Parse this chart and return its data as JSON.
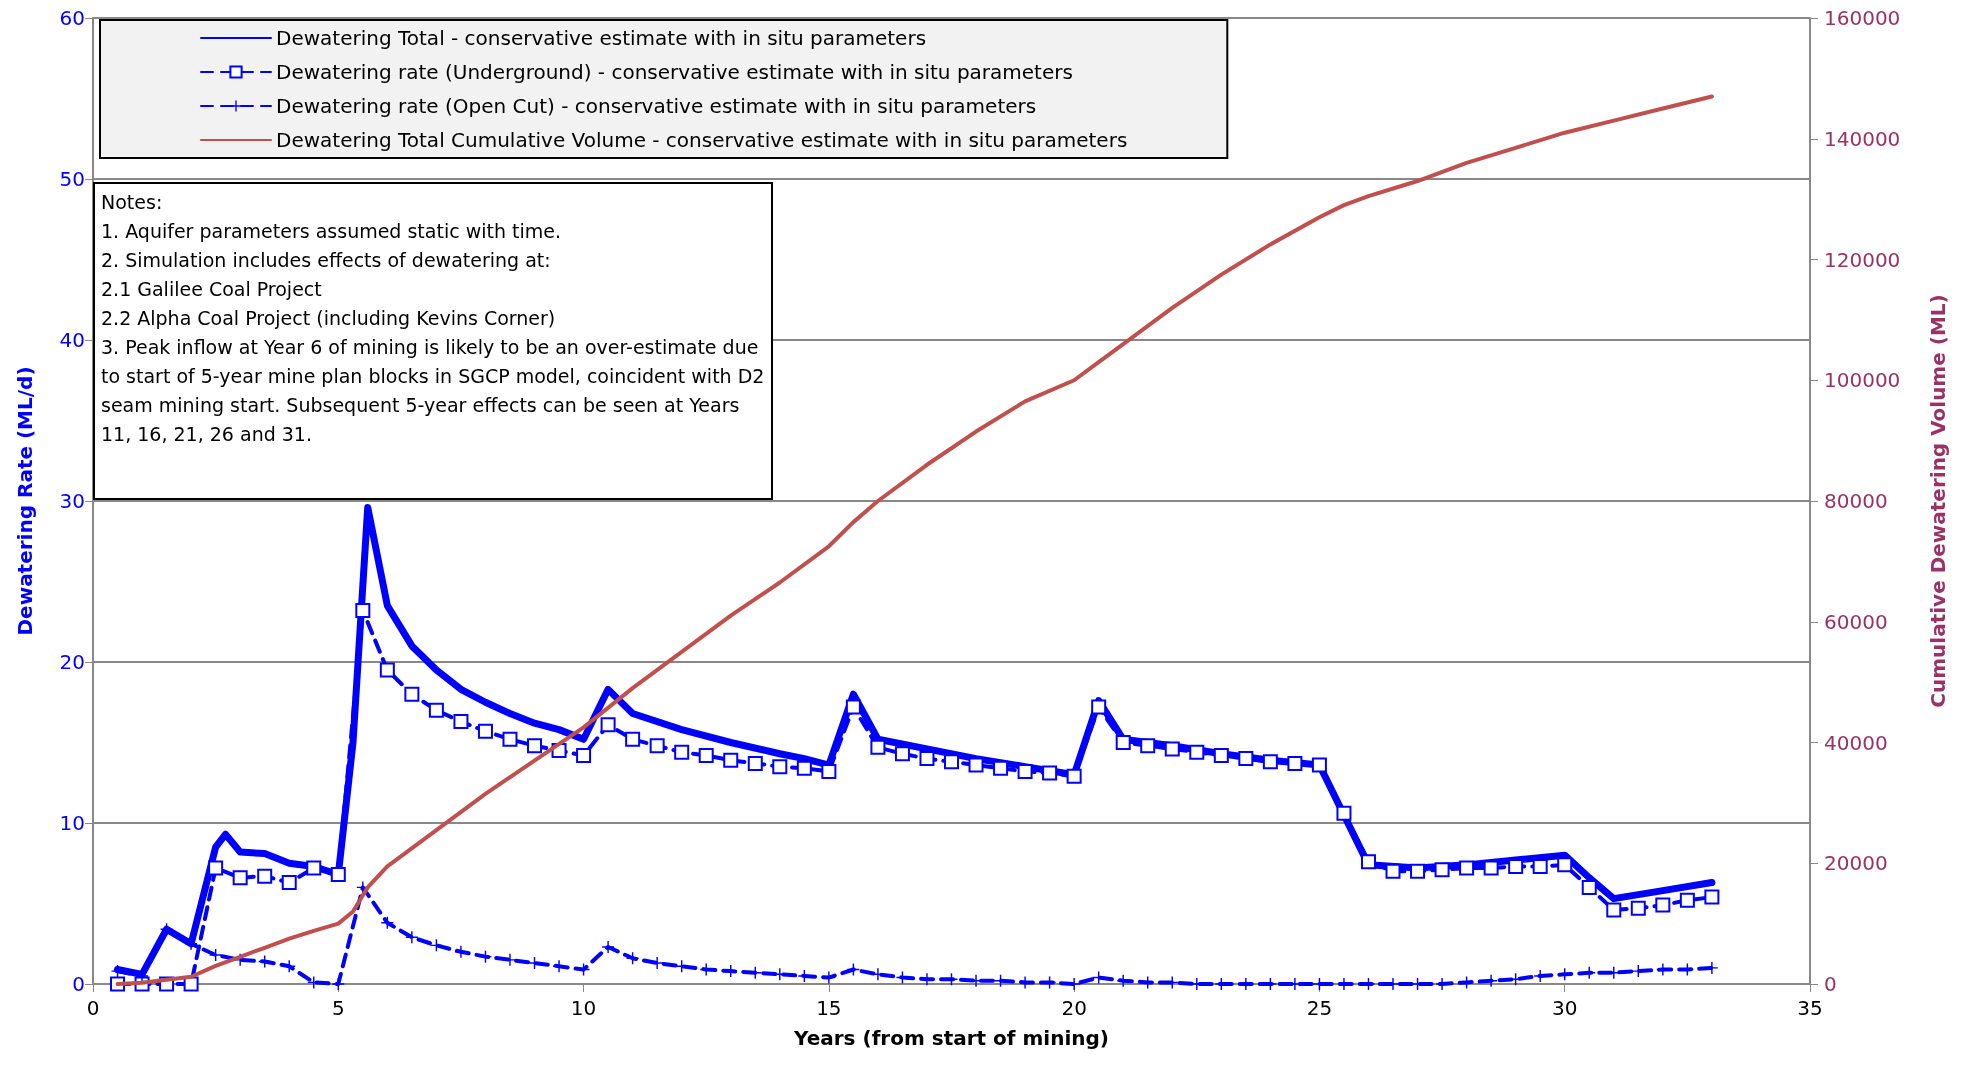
{
  "chart_data": {
    "type": "line",
    "xlabel": "Years (from start of mining)",
    "ylabel": "Dewatering Rate (ML/d)",
    "y2label": "Cumulative Dewatering Volume (ML)",
    "xlim": [
      0,
      35
    ],
    "xticks": [
      0,
      5,
      10,
      15,
      20,
      25,
      30,
      35
    ],
    "ylim": [
      0,
      60
    ],
    "yticks": [
      0,
      10,
      20,
      30,
      40,
      50,
      60
    ],
    "y2lim": [
      0,
      160000
    ],
    "y2ticks": [
      0,
      20000,
      40000,
      60000,
      80000,
      100000,
      120000,
      140000,
      160000
    ],
    "grid": "y",
    "legend": "top left",
    "series": [
      {
        "name": "Dewatering Total - conservative estimate with in situ parameters",
        "color": "#0000ff",
        "line_style": "solid",
        "marker": "none",
        "x": [
          0.5,
          1,
          1.5,
          2,
          2.5,
          2.7,
          3,
          3.5,
          4,
          4.5,
          5,
          5.3,
          5.6,
          6,
          6.5,
          7,
          7.5,
          8,
          8.5,
          9,
          9.5,
          10,
          10.5,
          11,
          12,
          13,
          14,
          14.5,
          15,
          15.5,
          16,
          17,
          18,
          19,
          20,
          20.5,
          21,
          22,
          23,
          24,
          25,
          25.5,
          26,
          27,
          28,
          29,
          30,
          30.5,
          31,
          32,
          33
        ],
        "values": [
          0.9,
          0.6,
          3.4,
          2.5,
          8.5,
          9.3,
          8.2,
          8.1,
          7.5,
          7.3,
          6.8,
          15,
          29.6,
          23.5,
          21,
          19.5,
          18.3,
          17.5,
          16.8,
          16.2,
          15.8,
          15.2,
          18.3,
          16.8,
          15.8,
          15,
          14.3,
          14,
          13.6,
          18,
          15.2,
          14.6,
          14,
          13.5,
          13,
          17.6,
          15.2,
          14.8,
          14.3,
          13.9,
          13.6,
          10.5,
          7.4,
          7.2,
          7.4,
          7.7,
          8,
          6.6,
          5.3,
          5.8,
          6.3
        ]
      },
      {
        "name": "Dewatering rate (Underground) - conservative estimate with in situ parameters",
        "color": "#0000ff",
        "line_style": "dashed",
        "marker": "square",
        "x": [
          0.5,
          1,
          1.5,
          2,
          2.5,
          3,
          3.5,
          4,
          4.5,
          5,
          5.5,
          6,
          6.5,
          7,
          7.5,
          8,
          8.5,
          9,
          9.5,
          10,
          10.5,
          11,
          11.5,
          12,
          12.5,
          13,
          13.5,
          14,
          14.5,
          15,
          15.5,
          16,
          16.5,
          17,
          17.5,
          18,
          18.5,
          19,
          19.5,
          20,
          20.5,
          21,
          21.5,
          22,
          22.5,
          23,
          23.5,
          24,
          24.5,
          25,
          25.5,
          26,
          26.5,
          27,
          27.5,
          28,
          28.5,
          29,
          29.5,
          30,
          30.5,
          31,
          31.5,
          32,
          32.5,
          33
        ],
        "values": [
          0,
          0,
          0,
          0,
          7.2,
          6.6,
          6.7,
          6.3,
          7.2,
          6.8,
          23.2,
          19.5,
          18,
          17,
          16.3,
          15.7,
          15.2,
          14.8,
          14.5,
          14.2,
          16.1,
          15.2,
          14.8,
          14.4,
          14.2,
          13.9,
          13.7,
          13.5,
          13.4,
          13.2,
          17.2,
          14.7,
          14.3,
          14,
          13.8,
          13.6,
          13.4,
          13.2,
          13.1,
          12.9,
          17.2,
          15,
          14.8,
          14.6,
          14.4,
          14.2,
          14,
          13.8,
          13.7,
          13.6,
          10.6,
          7.6,
          7,
          7,
          7.1,
          7.2,
          7.2,
          7.3,
          7.3,
          7.4,
          6,
          4.6,
          4.7,
          4.9,
          5.2,
          5.4
        ]
      },
      {
        "name": "Dewatering rate (Open Cut) - conservative estimate with in situ parameters",
        "color": "#0000ff",
        "line_style": "dashed",
        "marker": "cross",
        "x": [
          0.5,
          1,
          1.5,
          2,
          2.5,
          3,
          3.5,
          4,
          4.5,
          5,
          5.5,
          6,
          6.5,
          7,
          7.5,
          8,
          8.5,
          9,
          9.5,
          10,
          10.5,
          11,
          11.5,
          12,
          12.5,
          13,
          13.5,
          14,
          14.5,
          15,
          15.5,
          16,
          16.5,
          17,
          17.5,
          18,
          18.5,
          19,
          19.5,
          20,
          20.5,
          21,
          21.5,
          22,
          22.5,
          23,
          23.5,
          24,
          24.5,
          25,
          25.5,
          26,
          26.5,
          27,
          27.5,
          28,
          28.5,
          29,
          29.5,
          30,
          30.5,
          31,
          31.5,
          32,
          32.5,
          33
        ],
        "values": [
          0.8,
          0.5,
          3.4,
          2.5,
          1.8,
          1.5,
          1.4,
          1.1,
          0.1,
          0,
          6,
          3.8,
          2.9,
          2.4,
          2,
          1.7,
          1.5,
          1.3,
          1.1,
          0.9,
          2.3,
          1.6,
          1.3,
          1.1,
          0.9,
          0.8,
          0.7,
          0.6,
          0.5,
          0.4,
          0.9,
          0.6,
          0.4,
          0.3,
          0.3,
          0.2,
          0.2,
          0.1,
          0.1,
          0,
          0.4,
          0.2,
          0.1,
          0.1,
          0,
          0,
          0,
          0,
          0,
          0,
          0,
          0,
          0,
          0,
          0,
          0.1,
          0.2,
          0.3,
          0.5,
          0.6,
          0.7,
          0.7,
          0.8,
          0.9,
          0.9,
          1
        ]
      },
      {
        "name": "Dewatering Total Cumulative Volume - conservative estimate with in situ parameters",
        "color": "#c0504d",
        "line_style": "solid",
        "marker": "none",
        "axis": "y2",
        "x": [
          0.5,
          1,
          2,
          2.5,
          3,
          3.5,
          4,
          4.5,
          5,
          5.3,
          5.6,
          6,
          7,
          8,
          9,
          10,
          11,
          12,
          13,
          14,
          15,
          15.5,
          16,
          17,
          18,
          19,
          20,
          20.5,
          21,
          22,
          23,
          24,
          25,
          25.5,
          26,
          27,
          28,
          29,
          30,
          31,
          32,
          33
        ],
        "values": [
          0,
          200,
          1200,
          3000,
          4500,
          6000,
          7500,
          8800,
          10000,
          12000,
          16000,
          19500,
          25500,
          31500,
          37000,
          42500,
          49000,
          55000,
          61000,
          66500,
          72500,
          76500,
          80000,
          86000,
          91500,
          96500,
          100000,
          103000,
          106000,
          112000,
          117500,
          122500,
          127000,
          129000,
          130500,
          133000,
          136000,
          138500,
          141000,
          143000,
          145000,
          147000
        ]
      }
    ],
    "annotations": [
      "Notes:",
      "1. Aquifer parameters assumed static with time.",
      "2. Simulation includes effects of dewatering at:",
      "2.1 Galilee Coal Project",
      "2.2 Alpha Coal Project (including Kevins Corner)",
      "3. Peak inflow at Year 6 of mining is likely to be an over-estimate due to start of 5-year mine plan blocks in SGCP model, coincident with D2 seam mining start. Subsequent 5-year effects can be seen at Years 11, 16, 21, 26 and 31."
    ]
  }
}
